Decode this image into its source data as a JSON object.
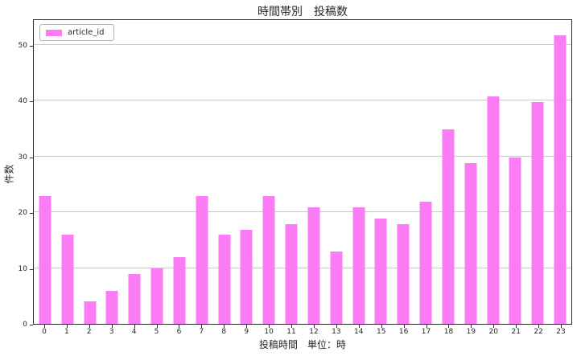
{
  "chart_data": {
    "type": "bar",
    "title": "時間帯別　投稿数",
    "xlabel": "投稿時間　単位：時",
    "ylabel": "件数",
    "legend": {
      "position": "upper-left",
      "series_label": "article_id"
    },
    "categories": [
      "0",
      "1",
      "2",
      "3",
      "4",
      "5",
      "6",
      "7",
      "8",
      "9",
      "10",
      "11",
      "12",
      "13",
      "14",
      "15",
      "16",
      "17",
      "18",
      "19",
      "20",
      "21",
      "22",
      "23"
    ],
    "values": [
      23,
      16,
      4,
      6,
      9,
      10,
      12,
      23,
      16,
      17,
      23,
      18,
      21,
      13,
      21,
      19,
      18,
      22,
      35,
      29,
      41,
      30,
      40,
      52
    ],
    "yticks": [
      0,
      10,
      20,
      30,
      40,
      50
    ],
    "ylim": [
      0,
      54.7
    ],
    "grid": "horizontal-only",
    "colors": {
      "bar": "#fb7cf4",
      "grid": "#c9c9c9",
      "axis": "#2a2a2a",
      "text": "#262626"
    }
  }
}
